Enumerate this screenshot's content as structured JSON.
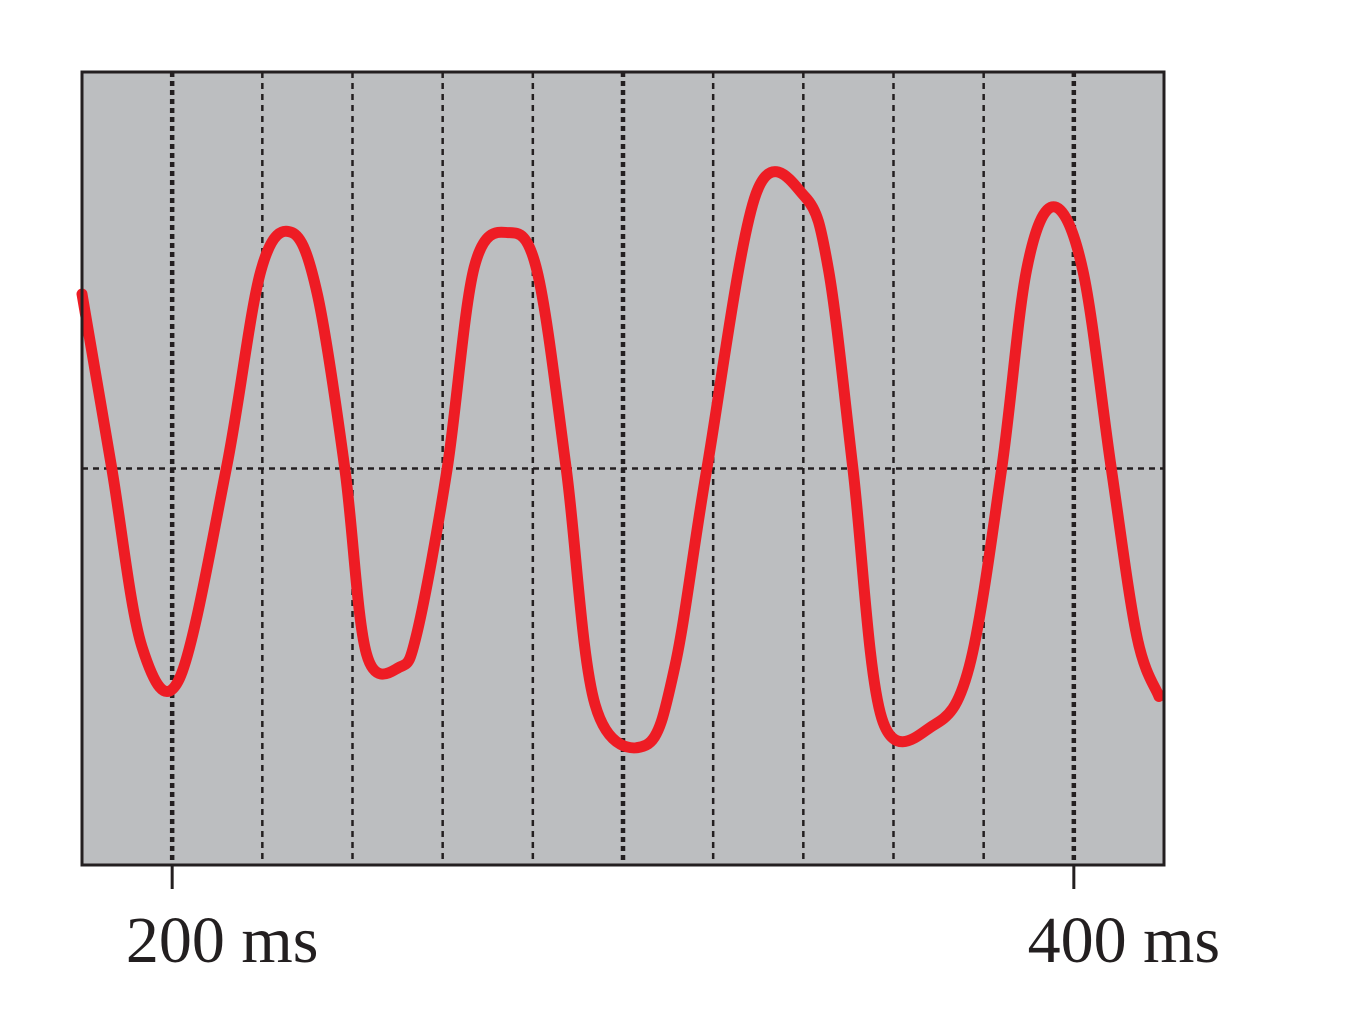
{
  "chart_data": {
    "type": "line",
    "title": "",
    "xlabel": "",
    "ylabel": "",
    "xlim": [
      180,
      420
    ],
    "ylim": [
      -4,
      4
    ],
    "x_unit": "ms",
    "x_ticks": [
      {
        "value": 200,
        "label": "200 ms"
      },
      {
        "value": 400,
        "label": "400 ms"
      }
    ],
    "grid": true,
    "grid_vertical_step": 20,
    "grid_horizontal": [
      0
    ],
    "legend": "none",
    "colors": {
      "trace": "#ee1c24",
      "plot_background": "#bcbec0",
      "grid": "#231f20",
      "frame": "#231f20"
    },
    "series": [
      {
        "x": [
          180,
          186.6,
          193.3,
          201.6,
          212,
          219.7,
          226.6,
          232.2,
          238.3,
          243.1,
          250.6,
          254.4,
          261,
          267,
          274.5,
          280.9,
          287.4,
          293.8,
          305.1,
          311.5,
          318.6,
          329.5,
          340.4,
          345.6,
          351,
          357.4,
          368.9,
          376.8,
          384,
          389.5,
          395.5,
          402,
          408.3,
          414,
          418.9
        ],
        "y": [
          1.76,
          0,
          -1.8,
          -2.12,
          0,
          2.0,
          2.38,
          1.76,
          0,
          -1.87,
          -2.0,
          -1.64,
          0,
          2.03,
          2.38,
          2.0,
          0,
          -2.38,
          -2.79,
          -2.0,
          0,
          2.77,
          2.74,
          2.0,
          0,
          -2.52,
          -2.59,
          -2.0,
          0,
          2.0,
          2.64,
          2.0,
          0,
          -1.7,
          -2.3
        ]
      }
    ]
  }
}
